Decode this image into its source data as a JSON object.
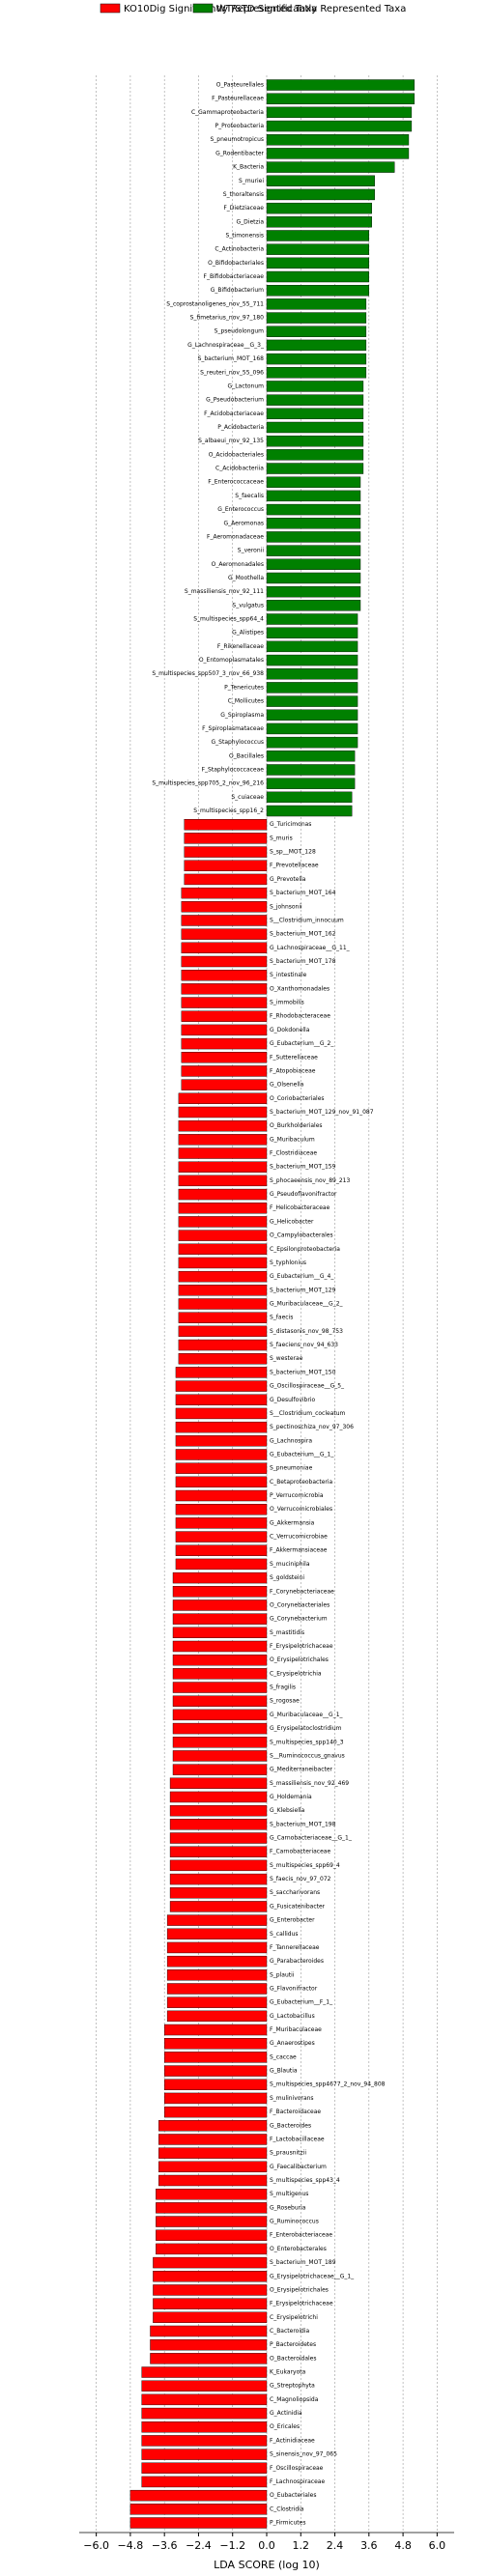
{
  "chart_data": {
    "type": "bar",
    "orientation": "horizontal",
    "xlabel": "LDA SCORE (log 10)",
    "xlim": [
      -6.6,
      6.6
    ],
    "xticks": [
      {
        "value": -6.0,
        "label": "−6.0"
      },
      {
        "value": -4.8,
        "label": "−4.8"
      },
      {
        "value": -3.6,
        "label": "−3.6"
      },
      {
        "value": -2.4,
        "label": "−2.4"
      },
      {
        "value": -1.2,
        "label": "−1.2"
      },
      {
        "value": 0,
        "label": "0.0"
      },
      {
        "value": 1.2,
        "label": "1.2"
      },
      {
        "value": 2.4,
        "label": "2.4"
      },
      {
        "value": 3.6,
        "label": "3.6"
      },
      {
        "value": 4.8,
        "label": "4.8"
      },
      {
        "value": 6.0,
        "label": "6.0"
      }
    ],
    "grid": true,
    "series": [
      {
        "name": "WT/STD Significantly Represented Taxa",
        "color": "#008000",
        "categories": [
          "O_Pasteurellales",
          "F_Pasteurellaceae",
          "C_Gammaproteobacteria",
          "P_Proteobacteria",
          "S_pneumotropicus",
          "G_Rodentibacter",
          "K_Bacteria",
          "S_muriei",
          "S_thoraltensis",
          "F_Dietziaceae",
          "G_Dietzia",
          "S_timonensis",
          "C_Actinobacteria",
          "O_Bifidobacteriales",
          "F_Bifidobacteriaceae",
          "G_Bifidobacterium",
          "S_coprostanoligenes_nov_55_711",
          "S_fimetarius_nov_97_180",
          "S_pseudolongum",
          "G_Lachnospiraceae__G_3_",
          "S_bacterium_MOT_168",
          "S_reuteri_nov_55_096",
          "G_Lactonum",
          "G_Pseudobacterium",
          "F_Acidobacteriaceae",
          "P_Acidobacteria",
          "S_albaeui_nov_92_135",
          "O_Acidobacteriales",
          "C_Acidobacteriia",
          "F_Enterococcaceae",
          "S_faecalis",
          "G_Enterococcus",
          "G_Aeromonas",
          "F_Aeromonadaceae",
          "S_veronii",
          "O_Aeromonadales",
          "G_Moothella",
          "S_massiliensis_nov_92_111",
          "S_vulgatus",
          "S_multispecies_spp64_4",
          "G_Alistipes",
          "F_Rikenellaceae",
          "O_Entomoplasmatales",
          "S_multispecies_spp507_3_nov_66_938",
          "P_Tenericutes",
          "C_Mollicutes",
          "G_Spiroplasma",
          "F_Spiroplasmataceae",
          "G_Staphylococcus",
          "O_Bacillales",
          "F_Staphylococcaceae",
          "S_multispecies_spp705_2_nov_96_216",
          "S_cuiaceae",
          "S_multispecies_spp16_2"
        ],
        "values": [
          5.2,
          5.2,
          5.1,
          5.1,
          5.0,
          5.0,
          4.5,
          3.8,
          3.8,
          3.7,
          3.7,
          3.6,
          3.6,
          3.6,
          3.6,
          3.6,
          3.5,
          3.5,
          3.5,
          3.5,
          3.5,
          3.5,
          3.4,
          3.4,
          3.4,
          3.4,
          3.4,
          3.4,
          3.4,
          3.3,
          3.3,
          3.3,
          3.3,
          3.3,
          3.3,
          3.3,
          3.3,
          3.3,
          3.3,
          3.2,
          3.2,
          3.2,
          3.2,
          3.2,
          3.2,
          3.2,
          3.2,
          3.2,
          3.2,
          3.1,
          3.1,
          3.1,
          3.0,
          3.0
        ]
      },
      {
        "name": "KO10Dig Significantly Represented Taxa",
        "color": "#ff0000",
        "categories": [
          "G_Turicimonas",
          "S_muris",
          "S_sp__MOT_128",
          "F_Prevotellaceae",
          "G_Prevotella",
          "S_bacterium_MOT_164",
          "S_johnsonii",
          "S__Clostridium_innocuum",
          "S_bacterium_MOT_162",
          "G_Lachnospiraceae__G_11_",
          "S_bacterium_MOT_178",
          "S_intestinale",
          "O_Xanthomonadales",
          "S_immobilis",
          "F_Rhodobacteraceae",
          "G_Dokdonella",
          "G_Eubacterium__G_2_",
          "F_Sutterellaceae",
          "F_Atopobiaceae",
          "G_Olsenella",
          "O_Coriobacteriales",
          "S_bacterium_MOT_129_nov_91_087",
          "O_Burkholderiales",
          "G_Muribaculum",
          "F_Clostridiaceae",
          "S_bacterium_MOT_159",
          "S_phocaeensis_nov_89_213",
          "G_Pseudoflavonifractor",
          "F_Helicobacteraceae",
          "G_Helicobacter",
          "O_Campylobacterales",
          "C_Epsilonproteobacteria",
          "S_typhlonius",
          "G_Eubacterium__G_4_",
          "S_bacterium_MOT_129",
          "G_Muribaculaceae__G_2_",
          "S_faecis",
          "S_distasonis_nov_98_753",
          "S_faeciens_nov_94_633",
          "S_westerae",
          "S_bacterium_MOT_150",
          "G_Oscillospiraceae__G_5_",
          "G_Desulfovibrio",
          "S__Clostridium_cocleatum",
          "S_pectinoschiza_nov_97_306",
          "G_Lachnospira",
          "G_Eubacterium__G_1_",
          "S_pneumoniae",
          "C_Betaproteobacteria",
          "P_Verrucomicrobia",
          "O_Verrucomicrobiales",
          "G_Akkermansia",
          "C_Verrucomicrobiae",
          "F_Akkermansiaceae",
          "S_muciniphila",
          "S_goldsteini",
          "F_Corynebacteriaceae",
          "O_Corynebacteriales",
          "G_Corynebacterium",
          "S_mastitidis",
          "F_Erysipelotrichaceae",
          "O_Erysipelotrichales",
          "C_Erysipelotrichia",
          "S_fragilis",
          "S_rogosae",
          "G_Muribaculaceae__G_1_",
          "G_Erysipelatoclostridium",
          "S_multispecies_spp140_3",
          "S__Ruminococcus_gnavus",
          "G_Mediterraneibacter",
          "S_massiliensis_nov_92_469",
          "G_Holdemania",
          "G_Klebsiella",
          "S_bacterium_MOT_198",
          "G_Carnobacteriaceae__G_1_",
          "F_Carnobacteriaceae",
          "S_multispecies_spp69_4",
          "S_faecis_nov_97_072",
          "S_saccharivorans",
          "G_Fusicatenibacter",
          "G_Enterobacter",
          "S_callidus",
          "F_Tannerellaceae",
          "G_Parabacteroides",
          "S_plautii",
          "G_Flavonifractor",
          "G_Eubacterium__F_1_",
          "G_Lactobacillus",
          "F_Muribaculaceae",
          "G_Anaerostipes",
          "S_caccae",
          "G_Blautia",
          "S_multispecies_spp4677_2_nov_94_808",
          "S_mulinivorans",
          "F_Bacteroidaceae",
          "G_Bacteroides",
          "F_Lactobacillaceae",
          "S_prausnitzii",
          "G_Faecalibacterium",
          "S_multispecies_spp43_4",
          "S_multigenus",
          "G_Roseburia",
          "G_Ruminococcus",
          "F_Enterobacteriaceae",
          "O_Enterobacterales",
          "S_bacterium_MOT_189",
          "G_Erysipelotrichaceae__G_1_",
          "O_Erysipelotrichales",
          "F_Erysipelotrichaceae",
          "C_Erysipelotrichi",
          "C_Bacteroidia",
          "P_Bacteroidetes",
          "O_Bacteroidales",
          "K_Eukaryota",
          "G_Streptophyta",
          "C_Magnoliopsida",
          "G_Actinidia",
          "O_Ericales",
          "F_Actinidiaceae",
          "S_sinensis_nov_97_065",
          "F_Oscillospiraceae",
          "F_Lachnospiraceae",
          "O_Eubacteriales",
          "C_Clostridia",
          "P_Firmicutes"
        ],
        "values": [
          -2.9,
          -2.9,
          -2.9,
          -2.9,
          -2.9,
          -3.0,
          -3.0,
          -3.0,
          -3.0,
          -3.0,
          -3.0,
          -3.0,
          -3.0,
          -3.0,
          -3.0,
          -3.0,
          -3.0,
          -3.0,
          -3.0,
          -3.0,
          -3.1,
          -3.1,
          -3.1,
          -3.1,
          -3.1,
          -3.1,
          -3.1,
          -3.1,
          -3.1,
          -3.1,
          -3.1,
          -3.1,
          -3.1,
          -3.1,
          -3.1,
          -3.1,
          -3.1,
          -3.1,
          -3.1,
          -3.1,
          -3.2,
          -3.2,
          -3.2,
          -3.2,
          -3.2,
          -3.2,
          -3.2,
          -3.2,
          -3.2,
          -3.2,
          -3.2,
          -3.2,
          -3.2,
          -3.2,
          -3.2,
          -3.3,
          -3.3,
          -3.3,
          -3.3,
          -3.3,
          -3.3,
          -3.3,
          -3.3,
          -3.3,
          -3.3,
          -3.3,
          -3.3,
          -3.3,
          -3.3,
          -3.3,
          -3.4,
          -3.4,
          -3.4,
          -3.4,
          -3.4,
          -3.4,
          -3.4,
          -3.4,
          -3.4,
          -3.4,
          -3.5,
          -3.5,
          -3.5,
          -3.5,
          -3.5,
          -3.5,
          -3.5,
          -3.5,
          -3.6,
          -3.6,
          -3.6,
          -3.6,
          -3.6,
          -3.6,
          -3.6,
          -3.8,
          -3.8,
          -3.8,
          -3.8,
          -3.8,
          -3.9,
          -3.9,
          -3.9,
          -3.9,
          -3.9,
          -4.0,
          -4.0,
          -4.0,
          -4.0,
          -4.0,
          -4.1,
          -4.1,
          -4.1,
          -4.4,
          -4.4,
          -4.4,
          -4.4,
          -4.4,
          -4.4,
          -4.4,
          -4.4,
          -4.4,
          -4.8,
          -4.8,
          -4.8
        ]
      }
    ]
  }
}
